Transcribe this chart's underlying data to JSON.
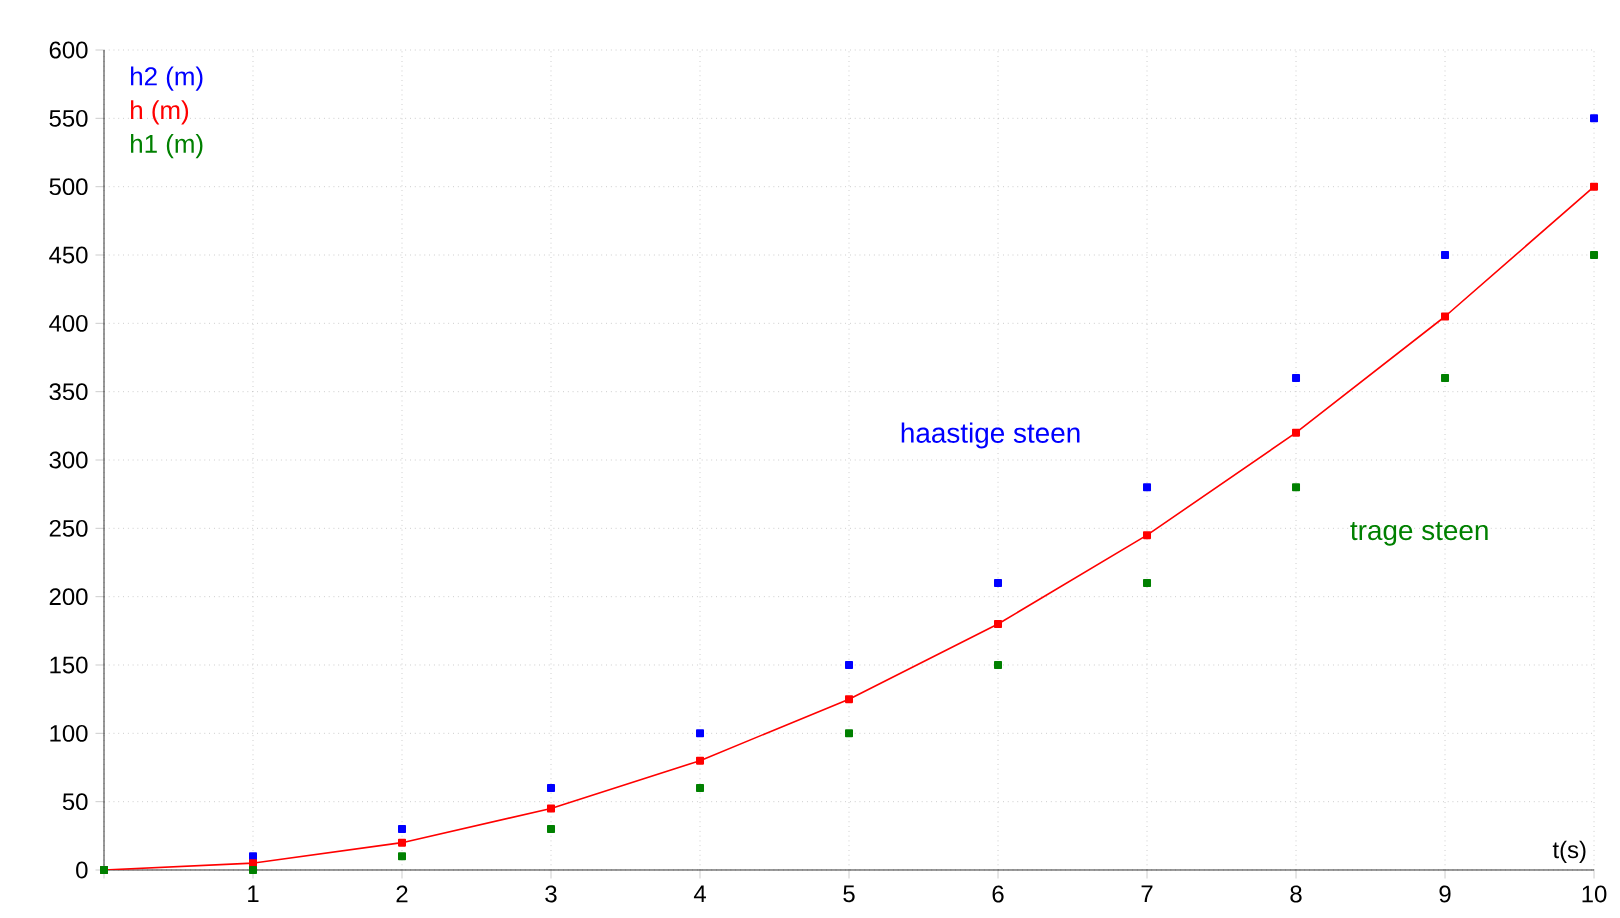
{
  "chart_data": {
    "type": "scatter",
    "xlabel": "t(s)",
    "x": [
      0,
      1,
      2,
      3,
      4,
      5,
      6,
      7,
      8,
      9,
      10
    ],
    "series": [
      {
        "name": "h2 (m)",
        "color": "#0000ff",
        "values": [
          0,
          10,
          30,
          60,
          100,
          150,
          210,
          280,
          360,
          450,
          550
        ]
      },
      {
        "name": "h (m)",
        "color": "#ff0000",
        "type": "line",
        "values": [
          0,
          5,
          20,
          45,
          80,
          125,
          180,
          245,
          320,
          405,
          500
        ]
      },
      {
        "name": "h1 (m)",
        "color": "#008000",
        "values": [
          0,
          0,
          10,
          30,
          60,
          100,
          150,
          210,
          280,
          360,
          450
        ]
      }
    ],
    "annotations": [
      "haastige steen",
      "trage steen"
    ],
    "xlim": [
      0,
      10
    ],
    "ylim": [
      0,
      600
    ],
    "xticks": [
      {
        "value": 0,
        "label": null
      },
      1,
      2,
      3,
      4,
      5,
      6,
      7,
      8,
      9,
      10
    ],
    "yticks": [
      0,
      50,
      100,
      150,
      200,
      250,
      300,
      350,
      400,
      450,
      500,
      550,
      600
    ],
    "grid": true,
    "legend": "top left",
    "marker": "square"
  }
}
